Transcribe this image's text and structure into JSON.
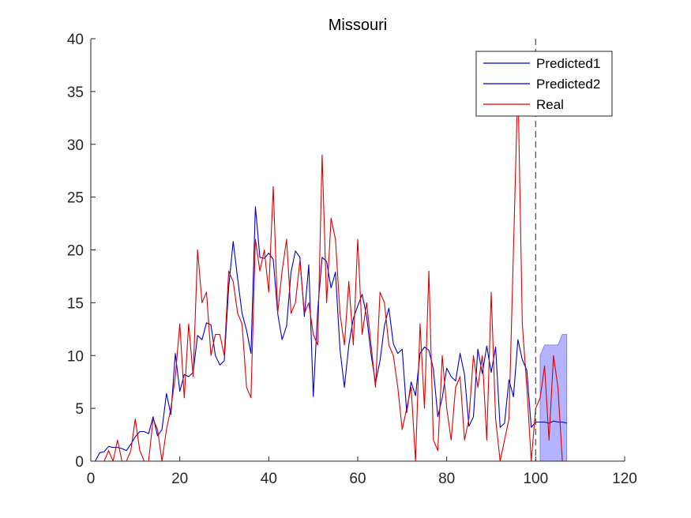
{
  "chart_data": {
    "type": "line",
    "title": "Missouri",
    "xlabel": "",
    "ylabel": "",
    "xlim": [
      0,
      120
    ],
    "ylim": [
      0,
      40
    ],
    "xticks": [
      0,
      20,
      40,
      60,
      80,
      100,
      120
    ],
    "yticks": [
      0,
      5,
      10,
      15,
      20,
      25,
      30,
      35,
      40
    ],
    "grid": false,
    "legend_position": "top-right",
    "vline_x": 100,
    "series": [
      {
        "name": "Predicted1",
        "color": "#0000cc",
        "x": [
          1,
          2,
          3,
          4,
          5,
          6,
          7,
          8,
          9,
          10,
          11,
          12,
          13,
          14,
          15,
          16,
          17,
          18,
          19,
          20,
          21,
          22,
          23,
          24,
          25,
          26,
          27,
          28,
          29,
          30,
          31,
          32,
          33,
          34,
          35,
          36,
          37,
          38,
          39,
          40,
          41,
          42,
          43,
          44,
          45,
          46,
          47,
          48,
          49,
          50,
          51,
          52,
          53,
          54,
          55,
          56,
          57,
          58,
          59,
          60,
          61,
          62,
          63,
          64,
          65,
          66,
          67,
          68,
          69,
          70,
          71,
          72,
          73,
          74,
          75,
          76,
          77,
          78,
          79,
          80,
          81,
          82,
          83,
          84,
          85,
          86,
          87,
          88,
          89,
          90,
          91,
          92,
          93,
          94,
          95,
          96,
          97,
          98,
          99,
          100
        ],
        "y": [
          0,
          0.8,
          0.9,
          1.4,
          1.3,
          1.3,
          1.2,
          1.0,
          1.6,
          2.3,
          2.8,
          2.8,
          2.6,
          4.2,
          2.4,
          3.0,
          6.4,
          4.4,
          10.2,
          6.6,
          8.2,
          8.0,
          8.4,
          11.9,
          11.5,
          13.1,
          12.9,
          10.0,
          9.1,
          9.5,
          16.5,
          20.8,
          17.3,
          14.0,
          12.4,
          10.2,
          24.1,
          19.3,
          19.2,
          19.7,
          19.1,
          14.0,
          11.5,
          12.8,
          17.9,
          19.9,
          19.3,
          13.7,
          18.6,
          6.1,
          14.3,
          19.3,
          18.9,
          16.4,
          17.9,
          10.6,
          7.0,
          11.0,
          13.5,
          14.7,
          15.8,
          13.7,
          10.1,
          7.4,
          9.5,
          12.8,
          14.5,
          11.1,
          10.2,
          10.6,
          4.6,
          7.5,
          6.2,
          10.2,
          10.8,
          10.5,
          8.7,
          4.2,
          6.0,
          8.8,
          8.0,
          7.6,
          10.2,
          8.2,
          3.3,
          4.2,
          10.6,
          8.3,
          10.9,
          8.4,
          10.8,
          3.2,
          3.6,
          7.7,
          6.1,
          11.5,
          9.6,
          8.6,
          3.2,
          3.7
        ]
      },
      {
        "name": "Predicted2",
        "color": "#0000cc",
        "x": [
          100,
          101,
          102,
          103,
          104,
          105,
          106,
          107
        ],
        "y": [
          3.7,
          3.7,
          3.7,
          3.6,
          3.8,
          3.7,
          3.7,
          3.6
        ]
      },
      {
        "name": "Real",
        "color": "#dd0000",
        "x": [
          1,
          2,
          3,
          4,
          5,
          6,
          7,
          8,
          9,
          10,
          11,
          12,
          13,
          14,
          15,
          16,
          17,
          18,
          19,
          20,
          21,
          22,
          23,
          24,
          25,
          26,
          27,
          28,
          29,
          30,
          31,
          32,
          33,
          34,
          35,
          36,
          37,
          38,
          39,
          40,
          41,
          42,
          43,
          44,
          45,
          46,
          47,
          48,
          49,
          50,
          51,
          52,
          53,
          54,
          55,
          56,
          57,
          58,
          59,
          60,
          61,
          62,
          63,
          64,
          65,
          66,
          67,
          68,
          69,
          70,
          71,
          72,
          73,
          74,
          75,
          76,
          77,
          78,
          79,
          80,
          81,
          82,
          83,
          84,
          85,
          86,
          87,
          88,
          89,
          90,
          91,
          92,
          93,
          94,
          95,
          96,
          97,
          98,
          99,
          100,
          101,
          102,
          103,
          104,
          105,
          106,
          107
        ],
        "y": [
          0,
          0,
          0,
          1,
          0,
          2,
          0,
          0,
          1,
          4,
          1,
          0,
          0,
          4,
          3,
          0,
          3,
          5,
          8,
          13,
          6,
          13,
          8,
          20,
          15,
          16,
          10,
          12,
          12,
          10,
          18,
          17,
          14,
          13,
          7,
          6,
          21,
          18,
          20,
          16,
          26,
          14,
          18,
          21,
          14,
          15,
          19,
          14,
          15,
          12,
          11,
          29,
          15,
          23,
          21,
          14,
          11,
          17,
          11,
          21,
          12,
          15,
          11,
          7,
          16,
          15,
          11,
          10,
          7,
          3,
          5,
          7,
          0,
          13,
          5,
          18,
          2,
          1,
          10,
          5,
          2,
          7,
          8,
          2,
          4,
          10,
          7,
          10,
          2,
          16,
          4,
          0,
          2,
          4,
          20,
          36,
          13,
          7,
          0,
          5,
          6,
          9,
          2,
          10,
          7,
          0,
          null
        ]
      }
    ],
    "band": {
      "name": "Predicted2 interval",
      "color": "#b3b3ff",
      "x": [
        101,
        102,
        103,
        104,
        105,
        106,
        107
      ],
      "lower": [
        0,
        0,
        0,
        0,
        0,
        0,
        0
      ],
      "upper": [
        10,
        11,
        11,
        11,
        11,
        12,
        12
      ]
    }
  }
}
